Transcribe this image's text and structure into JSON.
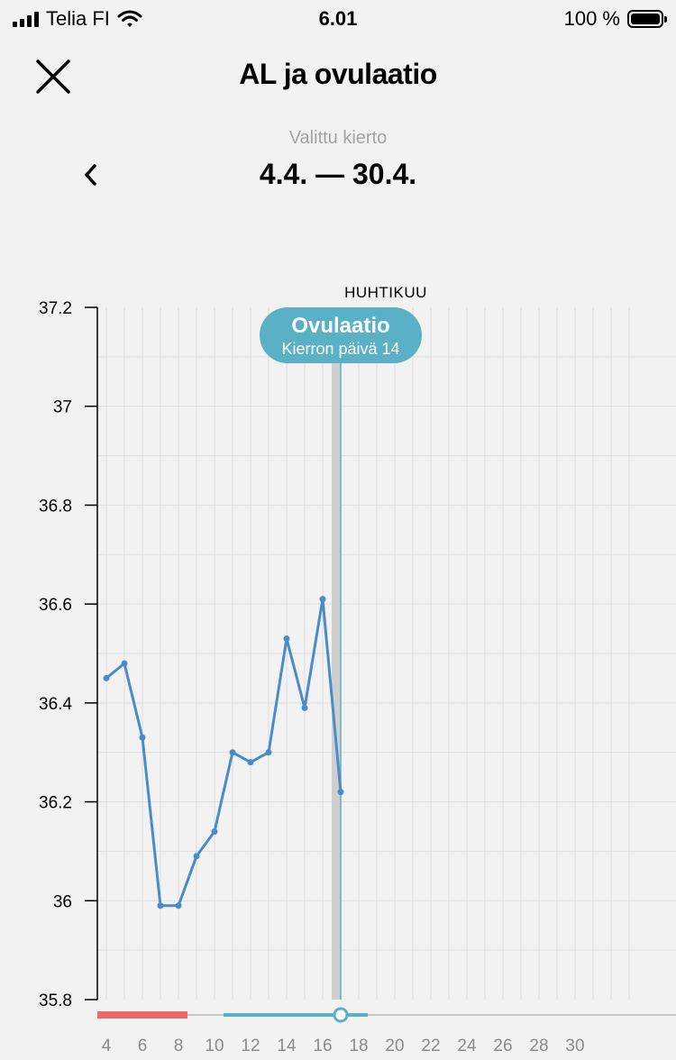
{
  "status_bar": {
    "carrier": "Telia FI",
    "time": "6.01",
    "battery": "100 %"
  },
  "header": {
    "title": "AL ja ovulaatio",
    "close_icon": "close-icon"
  },
  "cycle": {
    "label": "Valittu kierto",
    "range": "4.4. — 30.4.",
    "prev_icon": "chevron-left-icon"
  },
  "chart_data": {
    "type": "line",
    "month_label": "HUHTIKUU",
    "ylim": [
      35.8,
      37.2
    ],
    "xlim": [
      3,
      33
    ],
    "y_ticks": [
      "37.2",
      "37",
      "36.8",
      "36.6",
      "36.4",
      "36.2",
      "36",
      "35.8"
    ],
    "x_ticks": [
      "4",
      "6",
      "8",
      "10",
      "12",
      "14",
      "16",
      "18",
      "20",
      "22",
      "24",
      "26",
      "28",
      "30"
    ],
    "series": [
      {
        "x": [
          4,
          5,
          6,
          7,
          8,
          9,
          10,
          11,
          12,
          13,
          14,
          15,
          16,
          17
        ],
        "values": [
          36.45,
          36.48,
          36.33,
          35.99,
          35.99,
          36.09,
          36.14,
          36.3,
          36.28,
          36.3,
          36.53,
          36.39,
          36.61,
          36.22
        ],
        "color": "#4a8cc6"
      }
    ],
    "ovulation": {
      "day": 17,
      "title": "Ovulaatio",
      "subtitle": "Kierron päivä 14",
      "color": "#5ab0c4"
    },
    "period_days": [
      4,
      8
    ],
    "fertile_days": [
      11,
      18
    ],
    "period_color": "#e86b6b",
    "fertile_color": "#5ab0c4",
    "grid": true
  }
}
